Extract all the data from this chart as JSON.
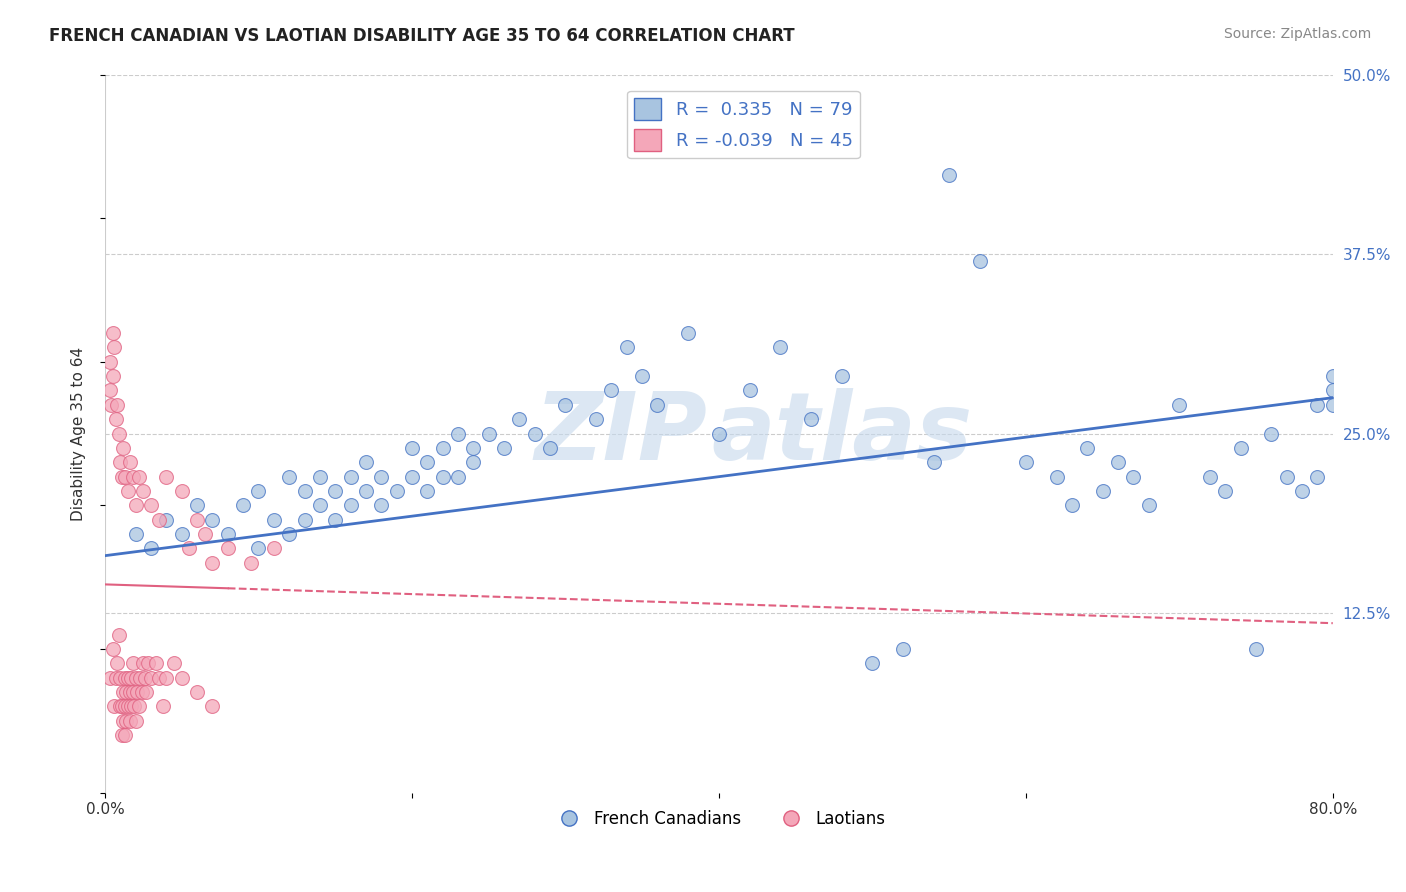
{
  "title": "FRENCH CANADIAN VS LAOTIAN DISABILITY AGE 35 TO 64 CORRELATION CHART",
  "source": "Source: ZipAtlas.com",
  "xlabel": "",
  "ylabel": "Disability Age 35 to 64",
  "r_blue": 0.335,
  "n_blue": 79,
  "r_pink": -0.039,
  "n_pink": 45,
  "xlim": [
    0.0,
    0.8
  ],
  "ylim": [
    0.0,
    0.5
  ],
  "xticks": [
    0.0,
    0.2,
    0.4,
    0.6,
    0.8
  ],
  "xticklabels": [
    "0.0%",
    "",
    "",
    "",
    "80.0%"
  ],
  "yticks_right": [
    0.125,
    0.25,
    0.375,
    0.5
  ],
  "ytick_labels_right": [
    "12.5%",
    "25.0%",
    "37.5%",
    "50.0%"
  ],
  "color_blue": "#a8c4e0",
  "color_pink": "#f4a7b9",
  "line_blue": "#4472c4",
  "line_pink": "#e06080",
  "background": "#ffffff",
  "blue_scatter_x": [
    0.02,
    0.03,
    0.04,
    0.05,
    0.06,
    0.07,
    0.08,
    0.09,
    0.1,
    0.1,
    0.11,
    0.12,
    0.12,
    0.13,
    0.13,
    0.14,
    0.14,
    0.15,
    0.15,
    0.16,
    0.16,
    0.17,
    0.17,
    0.18,
    0.18,
    0.19,
    0.2,
    0.2,
    0.21,
    0.21,
    0.22,
    0.22,
    0.23,
    0.23,
    0.24,
    0.24,
    0.25,
    0.26,
    0.27,
    0.28,
    0.29,
    0.3,
    0.32,
    0.33,
    0.34,
    0.35,
    0.36,
    0.38,
    0.4,
    0.42,
    0.44,
    0.46,
    0.48,
    0.5,
    0.52,
    0.54,
    0.55,
    0.57,
    0.6,
    0.62,
    0.63,
    0.64,
    0.65,
    0.66,
    0.67,
    0.68,
    0.7,
    0.72,
    0.73,
    0.74,
    0.75,
    0.76,
    0.77,
    0.78,
    0.79,
    0.79,
    0.8,
    0.8,
    0.8
  ],
  "blue_scatter_y": [
    0.18,
    0.17,
    0.19,
    0.18,
    0.2,
    0.19,
    0.18,
    0.2,
    0.17,
    0.21,
    0.19,
    0.18,
    0.22,
    0.19,
    0.21,
    0.2,
    0.22,
    0.19,
    0.21,
    0.2,
    0.22,
    0.21,
    0.23,
    0.2,
    0.22,
    0.21,
    0.22,
    0.24,
    0.21,
    0.23,
    0.22,
    0.24,
    0.22,
    0.25,
    0.23,
    0.24,
    0.25,
    0.24,
    0.26,
    0.25,
    0.24,
    0.27,
    0.26,
    0.28,
    0.31,
    0.29,
    0.27,
    0.32,
    0.25,
    0.28,
    0.31,
    0.26,
    0.29,
    0.09,
    0.1,
    0.23,
    0.43,
    0.37,
    0.23,
    0.22,
    0.2,
    0.24,
    0.21,
    0.23,
    0.22,
    0.2,
    0.27,
    0.22,
    0.21,
    0.24,
    0.1,
    0.25,
    0.22,
    0.21,
    0.27,
    0.22,
    0.28,
    0.27,
    0.29
  ],
  "pink_scatter_x": [
    0.003,
    0.005,
    0.006,
    0.007,
    0.008,
    0.009,
    0.01,
    0.01,
    0.011,
    0.011,
    0.012,
    0.012,
    0.013,
    0.013,
    0.013,
    0.014,
    0.014,
    0.015,
    0.015,
    0.016,
    0.016,
    0.017,
    0.017,
    0.018,
    0.018,
    0.019,
    0.02,
    0.02,
    0.021,
    0.022,
    0.023,
    0.024,
    0.025,
    0.026,
    0.027,
    0.028,
    0.03,
    0.033,
    0.035,
    0.038,
    0.04,
    0.045,
    0.05,
    0.06,
    0.07
  ],
  "pink_scatter_y": [
    0.08,
    0.1,
    0.06,
    0.08,
    0.09,
    0.11,
    0.06,
    0.08,
    0.04,
    0.06,
    0.05,
    0.07,
    0.04,
    0.06,
    0.08,
    0.05,
    0.07,
    0.06,
    0.08,
    0.05,
    0.07,
    0.06,
    0.08,
    0.07,
    0.09,
    0.06,
    0.05,
    0.08,
    0.07,
    0.06,
    0.08,
    0.07,
    0.09,
    0.08,
    0.07,
    0.09,
    0.08,
    0.09,
    0.08,
    0.06,
    0.08,
    0.09,
    0.08,
    0.07,
    0.06
  ],
  "pink_extra_x": [
    0.003,
    0.003,
    0.004,
    0.005,
    0.005,
    0.006,
    0.007,
    0.008,
    0.009,
    0.01,
    0.011,
    0.012,
    0.013,
    0.015,
    0.016,
    0.018,
    0.02,
    0.022,
    0.025,
    0.03,
    0.035,
    0.04,
    0.05,
    0.06,
    0.055,
    0.065,
    0.07,
    0.08,
    0.095,
    0.11
  ],
  "pink_extra_y": [
    0.28,
    0.3,
    0.27,
    0.29,
    0.32,
    0.31,
    0.26,
    0.27,
    0.25,
    0.23,
    0.22,
    0.24,
    0.22,
    0.21,
    0.23,
    0.22,
    0.2,
    0.22,
    0.21,
    0.2,
    0.19,
    0.22,
    0.21,
    0.19,
    0.17,
    0.18,
    0.16,
    0.17,
    0.16,
    0.17
  ]
}
